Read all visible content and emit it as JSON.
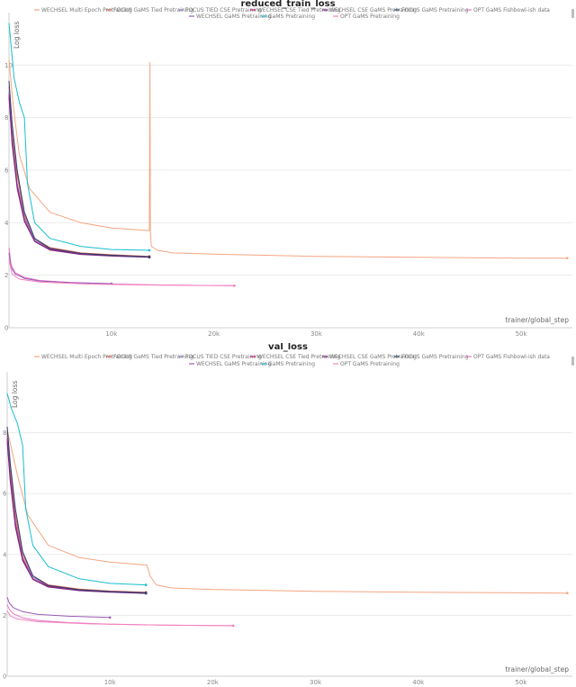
{
  "chart_data": [
    {
      "type": "line",
      "title": "reduced_train_loss",
      "xlabel": "trainer/global_step",
      "ylabel": "Log loss",
      "xlim": [
        0,
        55000
      ],
      "ylim": [
        0,
        12
      ],
      "x_ticks": [
        10000,
        20000,
        30000,
        40000,
        50000
      ],
      "x_tick_labels": [
        "10k",
        "20k",
        "30k",
        "40k",
        "50k"
      ],
      "y_ticks": [
        0,
        2,
        4,
        6,
        8,
        10
      ],
      "y_tick_labels": [
        "0",
        "2",
        "4",
        "6",
        "8",
        "10"
      ],
      "legend": "top",
      "series": [
        {
          "name": "WECHSEL Multi Epoch Pretraining",
          "color": "#f4a582",
          "x": [
            0,
            400,
            1000,
            2000,
            4000,
            7000,
            10000,
            13700,
            13760,
            13800,
            13900,
            14500,
            16000,
            20000,
            30000,
            40000,
            50000,
            54500
          ],
          "y": [
            10.2,
            8.5,
            6.6,
            5.3,
            4.4,
            4.0,
            3.8,
            3.7,
            10.1,
            3.6,
            3.1,
            2.95,
            2.85,
            2.8,
            2.72,
            2.68,
            2.65,
            2.65
          ]
        },
        {
          "name": "FOCUS GaMS Tied Pretraining",
          "color": "#d6604d",
          "x": [
            0,
            300,
            800,
            1500,
            2500,
            4000,
            7000,
            10000,
            13700
          ],
          "y": [
            9.2,
            7.5,
            5.8,
            4.3,
            3.4,
            3.05,
            2.85,
            2.78,
            2.72
          ]
        },
        {
          "name": "FOCUS TIED CSE Pretraining",
          "color": "#8e7cc3",
          "x": [
            0,
            300,
            800,
            1500,
            2500,
            4000,
            7000,
            10000,
            13700
          ],
          "y": [
            9.0,
            7.3,
            5.5,
            4.2,
            3.35,
            3.0,
            2.82,
            2.76,
            2.7
          ]
        },
        {
          "name": "WECHSEL CSE Tied Pretraining",
          "color": "#c51b7d",
          "x": [
            0,
            300,
            800,
            1500,
            2500,
            4000,
            7000,
            10000,
            13700
          ],
          "y": [
            8.9,
            7.1,
            5.4,
            4.1,
            3.3,
            2.98,
            2.8,
            2.74,
            2.69
          ]
        },
        {
          "name": "WECHSEL CSE GaMS Pretraining",
          "color": "#762a83",
          "x": [
            0,
            300,
            800,
            1500,
            2500,
            4000,
            7000,
            10000,
            13700
          ],
          "y": [
            8.8,
            7.0,
            5.3,
            4.05,
            3.28,
            2.96,
            2.79,
            2.73,
            2.68
          ]
        },
        {
          "name": "FOCUS GaMS Pretraining",
          "color": "#2c3e6b",
          "x": [
            0,
            300,
            800,
            1500,
            2500,
            4000,
            7000,
            10000,
            13700
          ],
          "y": [
            9.4,
            7.8,
            6.0,
            4.4,
            3.4,
            3.02,
            2.83,
            2.76,
            2.7
          ]
        },
        {
          "name": "OPT GaMS Fishbowl-ish data",
          "color": "#e377c2",
          "x": [
            0,
            200,
            600,
            1500,
            3000,
            6000,
            10000,
            15000,
            22000
          ],
          "y": [
            3.05,
            2.4,
            2.1,
            1.92,
            1.8,
            1.72,
            1.67,
            1.63,
            1.6
          ]
        },
        {
          "name": "WECHSEL GaMS Pretraining",
          "color": "#9b59b6",
          "x": [
            0,
            200,
            600,
            1500,
            3000,
            6000,
            10000
          ],
          "y": [
            2.85,
            2.3,
            2.05,
            1.88,
            1.78,
            1.72,
            1.68
          ]
        },
        {
          "name": "GaMS Pretraining",
          "color": "#17becf",
          "x": [
            0,
            500,
            1000,
            1500,
            1800,
            2500,
            4000,
            7000,
            10000,
            13700
          ],
          "y": [
            11.6,
            9.5,
            8.6,
            8.0,
            5.5,
            4.0,
            3.4,
            3.1,
            2.98,
            2.95
          ]
        },
        {
          "name": "OPT GaMS Pretraining",
          "color": "#f781bf",
          "x": [
            0,
            300,
            1000,
            3000,
            8000,
            15000,
            22000
          ],
          "y": [
            2.6,
            2.05,
            1.85,
            1.74,
            1.66,
            1.62,
            1.6
          ]
        }
      ]
    },
    {
      "type": "line",
      "title": "val_loss",
      "xlabel": "trainer/global_step",
      "ylabel": "Log loss",
      "xlim": [
        0,
        55000
      ],
      "ylim": [
        0,
        10
      ],
      "x_ticks": [
        10000,
        20000,
        30000,
        40000,
        50000
      ],
      "x_tick_labels": [
        "10k",
        "20k",
        "30k",
        "40k",
        "50k"
      ],
      "y_ticks": [
        0,
        2,
        4,
        6,
        8
      ],
      "y_tick_labels": [
        "0",
        "2",
        "4",
        "6",
        "8"
      ],
      "legend": "top",
      "series": [
        {
          "name": "WECHSEL Multi Epoch Pretraining",
          "color": "#f4a582",
          "x": [
            0,
            400,
            1000,
            2000,
            4000,
            7000,
            10000,
            13600,
            13900,
            14500,
            16000,
            20000,
            30000,
            40000,
            50000,
            54500
          ],
          "y": [
            8.1,
            7.5,
            6.6,
            5.3,
            4.3,
            3.9,
            3.75,
            3.65,
            3.3,
            3.0,
            2.9,
            2.85,
            2.79,
            2.76,
            2.74,
            2.73
          ]
        },
        {
          "name": "FOCUS GaMS Tied Pretraining",
          "color": "#d6604d",
          "x": [
            0,
            300,
            800,
            1500,
            2500,
            4000,
            7000,
            10000,
            13500
          ],
          "y": [
            8.0,
            6.8,
            5.3,
            4.0,
            3.3,
            3.0,
            2.86,
            2.8,
            2.76
          ]
        },
        {
          "name": "FOCUS TIED CSE Pretraining",
          "color": "#8e7cc3",
          "x": [
            0,
            300,
            800,
            1500,
            2500,
            4000,
            7000,
            10000,
            13500
          ],
          "y": [
            7.9,
            6.6,
            5.1,
            3.9,
            3.25,
            2.97,
            2.84,
            2.78,
            2.74
          ]
        },
        {
          "name": "WECHSEL CSE Tied Pretraining",
          "color": "#c51b7d",
          "x": [
            0,
            300,
            800,
            1500,
            2500,
            4000,
            7000,
            10000,
            13500
          ],
          "y": [
            7.8,
            6.5,
            5.0,
            3.85,
            3.2,
            2.95,
            2.82,
            2.77,
            2.73
          ]
        },
        {
          "name": "WECHSEL CSE GaMS Pretraining",
          "color": "#762a83",
          "x": [
            0,
            300,
            800,
            1500,
            2500,
            4000,
            7000,
            10000,
            13500
          ],
          "y": [
            7.7,
            6.4,
            4.9,
            3.8,
            3.18,
            2.93,
            2.81,
            2.76,
            2.72
          ]
        },
        {
          "name": "FOCUS GaMS Pretraining",
          "color": "#2c3e6b",
          "x": [
            0,
            300,
            800,
            1500,
            2500,
            4000,
            7000,
            10000,
            13500
          ],
          "y": [
            8.2,
            7.0,
            5.5,
            4.1,
            3.3,
            2.98,
            2.84,
            2.78,
            2.74
          ]
        },
        {
          "name": "OPT GaMS Fishbowl-ish data",
          "color": "#e377c2",
          "x": [
            0,
            200,
            600,
            1500,
            3000,
            6000,
            10000,
            15000,
            22000
          ],
          "y": [
            2.35,
            2.2,
            2.05,
            1.92,
            1.83,
            1.76,
            1.71,
            1.68,
            1.66
          ]
        },
        {
          "name": "WECHSEL GaMS Pretraining",
          "color": "#9b59b6",
          "x": [
            0,
            200,
            600,
            1500,
            3000,
            6000,
            10000
          ],
          "y": [
            2.6,
            2.4,
            2.25,
            2.12,
            2.03,
            1.97,
            1.93
          ]
        },
        {
          "name": "GaMS Pretraining",
          "color": "#17becf",
          "x": [
            0,
            400,
            1000,
            1500,
            1800,
            2500,
            4000,
            7000,
            10000,
            13500
          ],
          "y": [
            9.3,
            8.8,
            8.3,
            7.6,
            5.5,
            4.3,
            3.6,
            3.2,
            3.05,
            3.0
          ]
        },
        {
          "name": "OPT GaMS Pretraining",
          "color": "#f781bf",
          "x": [
            0,
            300,
            1000,
            3000,
            8000,
            15000,
            22000
          ],
          "y": [
            2.15,
            1.98,
            1.88,
            1.79,
            1.72,
            1.68,
            1.66
          ]
        }
      ]
    }
  ]
}
